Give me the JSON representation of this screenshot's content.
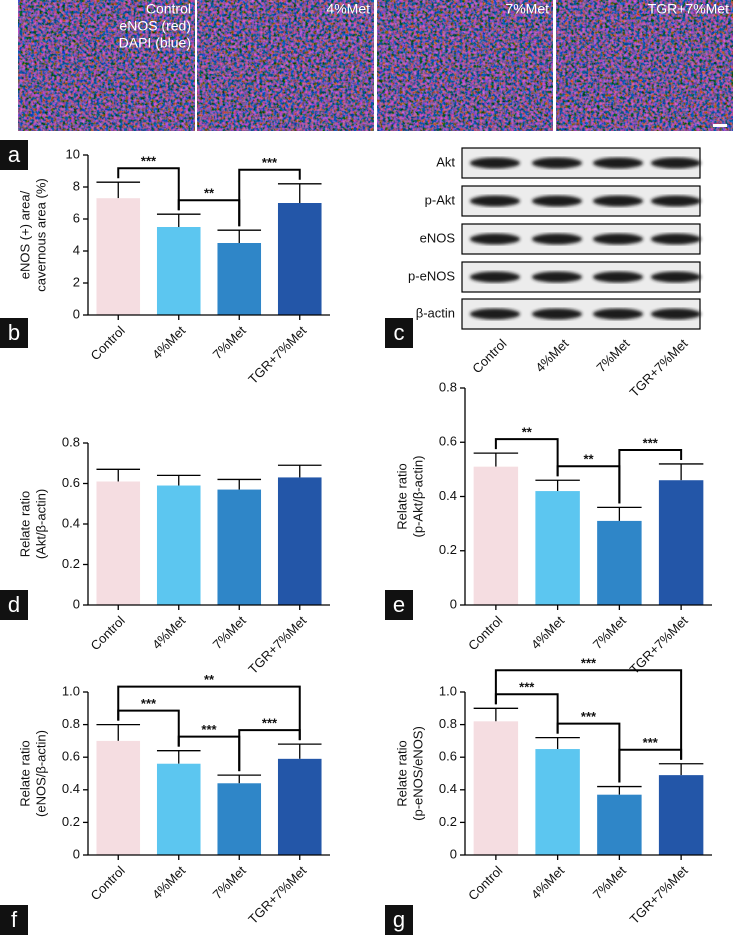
{
  "panel_a": {
    "panel_label": "a",
    "images": [
      {
        "labels": [
          "Control",
          "eNOS (red)",
          "DAPI (blue)"
        ]
      },
      {
        "labels": [
          "4%Met"
        ]
      },
      {
        "labels": [
          "7%Met"
        ]
      },
      {
        "labels": [
          "TGR+7%Met"
        ]
      }
    ]
  },
  "panel_c": {
    "panel_label": "c",
    "rows": [
      "Akt",
      "p-Akt",
      "eNOS",
      "p-eNOS",
      "β-actin"
    ],
    "columns": [
      "Control",
      "4%Met",
      "7%Met",
      "TGR+7%Met"
    ]
  },
  "chart_data": [
    {
      "type": "bar",
      "panel_label": "b",
      "ylabel": [
        "eNOS (+) area/",
        "cavernous area (%)"
      ],
      "categories": [
        "Control",
        "4%Met",
        "7%Met",
        "TGR+7%Met"
      ],
      "values": [
        7.3,
        5.5,
        4.5,
        7.0
      ],
      "errors": [
        1.0,
        0.8,
        0.8,
        1.2
      ],
      "colors": [
        "#f5dde1",
        "#5cc6f0",
        "#2f86c8",
        "#2356a8"
      ],
      "ylim": [
        0,
        10
      ],
      "yticks": [
        0,
        2,
        4,
        6,
        8,
        10
      ],
      "brackets": [
        {
          "from": 0,
          "to": 1,
          "label": "***"
        },
        {
          "from": 1,
          "to": 2,
          "label": "**"
        },
        {
          "from": 2,
          "to": 3,
          "label": "***"
        }
      ]
    },
    {
      "type": "bar",
      "panel_label": "d",
      "ylabel": [
        "Relate ratio",
        "(Akt/β-actin)"
      ],
      "categories": [
        "Control",
        "4%Met",
        "7%Met",
        "TGR+7%Met"
      ],
      "values": [
        0.61,
        0.59,
        0.57,
        0.63
      ],
      "errors": [
        0.06,
        0.05,
        0.05,
        0.06
      ],
      "colors": [
        "#f5dde1",
        "#5cc6f0",
        "#2f86c8",
        "#2356a8"
      ],
      "ylim": [
        0,
        0.8
      ],
      "yticks": [
        0,
        0.2,
        0.4,
        0.6,
        0.8
      ],
      "brackets": []
    },
    {
      "type": "bar",
      "panel_label": "e",
      "ylabel": [
        "Relate ratio",
        "(p-Akt/β-actin)"
      ],
      "categories": [
        "Control",
        "4%Met",
        "7%Met",
        "TGR+7%Met"
      ],
      "values": [
        0.51,
        0.42,
        0.31,
        0.46
      ],
      "errors": [
        0.05,
        0.04,
        0.05,
        0.06
      ],
      "colors": [
        "#f5dde1",
        "#5cc6f0",
        "#2f86c8",
        "#2356a8"
      ],
      "ylim": [
        0,
        0.8
      ],
      "yticks": [
        0,
        0.2,
        0.4,
        0.6,
        0.8
      ],
      "brackets": [
        {
          "from": 0,
          "to": 1,
          "label": "**"
        },
        {
          "from": 1,
          "to": 2,
          "label": "**"
        },
        {
          "from": 2,
          "to": 3,
          "label": "***"
        }
      ]
    },
    {
      "type": "bar",
      "panel_label": "f",
      "ylabel": [
        "Relate ratio",
        "(eNOS/β-actin)"
      ],
      "categories": [
        "Control",
        "4%Met",
        "7%Met",
        "TGR+7%Met"
      ],
      "values": [
        0.7,
        0.56,
        0.44,
        0.59
      ],
      "errors": [
        0.1,
        0.08,
        0.05,
        0.09
      ],
      "colors": [
        "#f5dde1",
        "#5cc6f0",
        "#2f86c8",
        "#2356a8"
      ],
      "ylim": [
        0,
        1
      ],
      "yticks": [
        0,
        0.2,
        0.4,
        0.6,
        0.8,
        {
          "value": 1,
          "label": "1.0"
        }
      ],
      "brackets": [
        {
          "from": 0,
          "to": 1,
          "label": "***"
        },
        {
          "from": 1,
          "to": 2,
          "label": "***"
        },
        {
          "from": 2,
          "to": 3,
          "label": "***"
        },
        {
          "from": 0,
          "to": 3,
          "label": "**"
        }
      ]
    },
    {
      "type": "bar",
      "panel_label": "g",
      "ylabel": [
        "Relate ratio",
        "(p-eNOS/eNOS)"
      ],
      "categories": [
        "Control",
        "4%Met",
        "7%Met",
        "TGR+7%Met"
      ],
      "values": [
        0.82,
        0.65,
        0.37,
        0.49
      ],
      "errors": [
        0.08,
        0.07,
        0.05,
        0.07
      ],
      "colors": [
        "#f5dde1",
        "#5cc6f0",
        "#2f86c8",
        "#2356a8"
      ],
      "ylim": [
        0,
        1
      ],
      "yticks": [
        0,
        0.2,
        0.4,
        0.6,
        0.8,
        {
          "value": 1,
          "label": "1.0"
        }
      ],
      "brackets": [
        {
          "from": 0,
          "to": 1,
          "label": "***"
        },
        {
          "from": 1,
          "to": 2,
          "label": "***"
        },
        {
          "from": 2,
          "to": 3,
          "label": "***"
        },
        {
          "from": 0,
          "to": 3,
          "label": "***"
        }
      ]
    }
  ]
}
